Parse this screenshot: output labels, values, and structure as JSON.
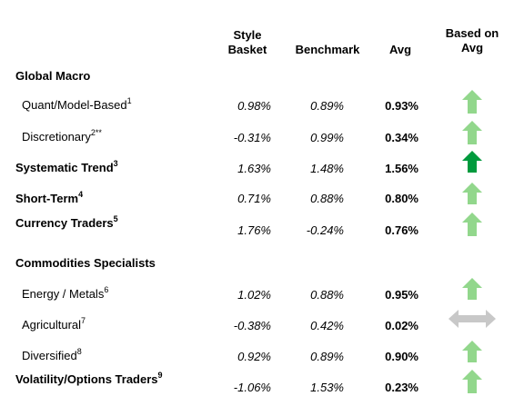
{
  "header": {
    "style_basket": [
      "Style",
      "Basket"
    ],
    "benchmark": "Benchmark",
    "avg": "Avg",
    "based_on_avg": [
      "Based on",
      "Avg"
    ]
  },
  "colors": {
    "arrow_light": "#92d78c",
    "arrow_dark": "#009a3d",
    "arrow_neutral": "#c8c8c8"
  },
  "rows": [
    {
      "label": "Global Macro",
      "sup": "",
      "bold": true,
      "style_basket": "",
      "benchmark": "",
      "avg": "",
      "arrow": ""
    },
    {
      "label": "Quant/Model-Based",
      "sup": "1",
      "bold": false,
      "style_basket": "0.98%",
      "benchmark": "0.89%",
      "avg": "0.93%",
      "arrow": "up-light"
    },
    {
      "label": "Discretionary",
      "sup": "2**",
      "bold": false,
      "style_basket": "-0.31%",
      "benchmark": "0.99%",
      "avg": "0.34%",
      "arrow": "up-light"
    },
    {
      "label": "Systematic Trend",
      "sup": "3",
      "bold": true,
      "style_basket": "1.63%",
      "benchmark": "1.48%",
      "avg": "1.56%",
      "arrow": "up-dark"
    },
    {
      "label": "Short-Term",
      "sup": "4",
      "bold": true,
      "style_basket": "0.71%",
      "benchmark": "0.88%",
      "avg": "0.80%",
      "arrow": "up-light"
    },
    {
      "label": "Currency Traders",
      "sup": "5",
      "bold": true,
      "style_basket": "1.76%",
      "benchmark": "-0.24%",
      "avg": "0.76%",
      "arrow": "up-light"
    },
    {
      "label": "Commodities Specialists",
      "sup": "",
      "bold": true,
      "style_basket": "",
      "benchmark": "",
      "avg": "",
      "arrow": ""
    },
    {
      "label": "Energy / Metals",
      "sup": "6",
      "bold": false,
      "style_basket": "1.02%",
      "benchmark": "0.88%",
      "avg": "0.95%",
      "arrow": "up-light"
    },
    {
      "label": "Agricultural",
      "sup": "7",
      "bold": false,
      "style_basket": "-0.38%",
      "benchmark": "0.42%",
      "avg": "0.02%",
      "arrow": "left-right-neutral"
    },
    {
      "label": "Diversified",
      "sup": "8",
      "bold": false,
      "style_basket": "0.92%",
      "benchmark": "0.89%",
      "avg": "0.90%",
      "arrow": "up-light"
    },
    {
      "label": "Volatility/Options Traders",
      "sup": "9",
      "bold": true,
      "style_basket": "-1.06%",
      "benchmark": "1.53%",
      "avg": "0.23%",
      "arrow": "up-light"
    }
  ]
}
